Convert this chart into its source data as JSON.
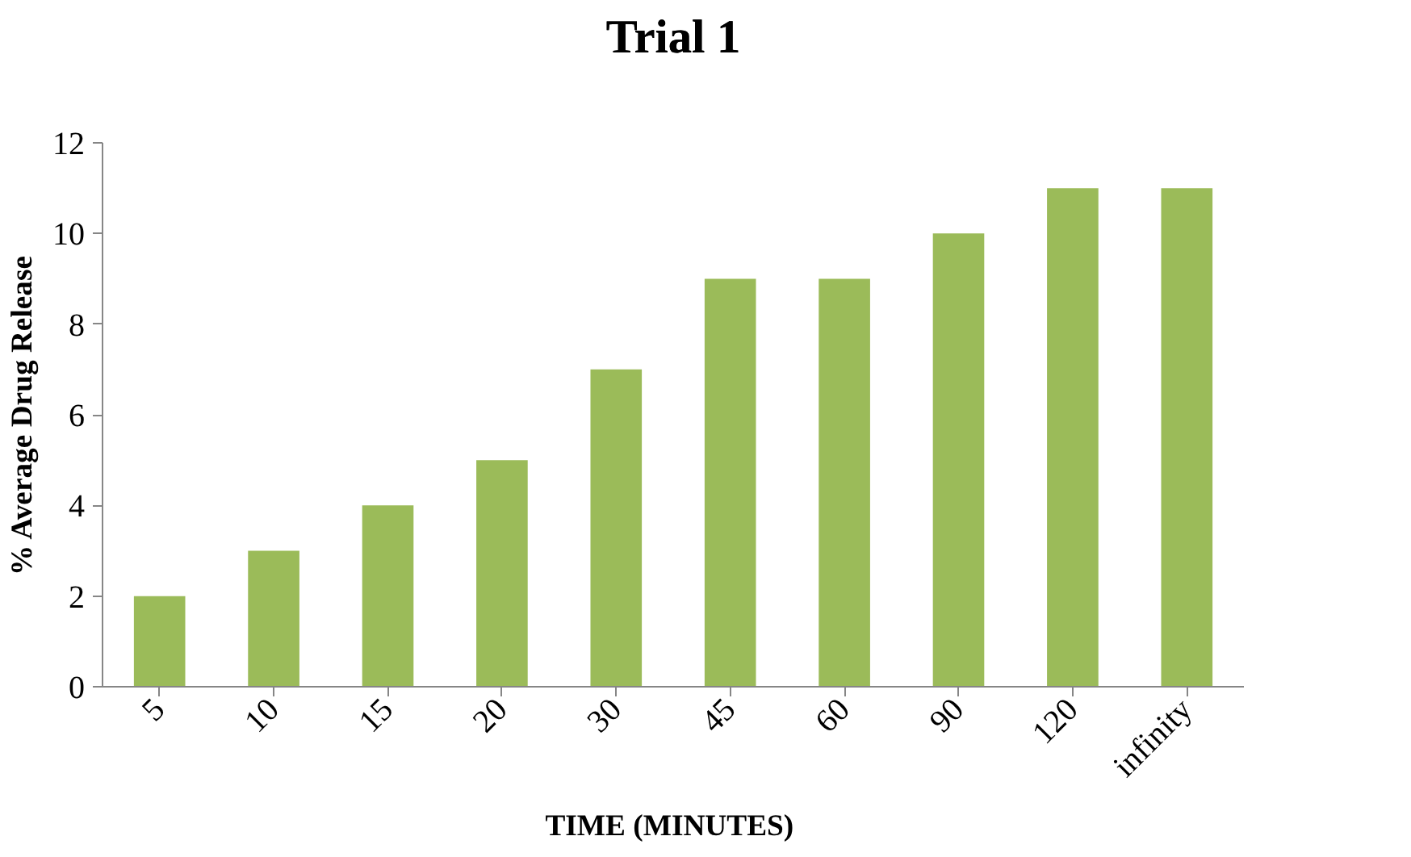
{
  "chart_data": {
    "type": "bar",
    "title": "Trial 1",
    "xlabel": "TIME  (MINUTES)",
    "ylabel": "% Average Drug Release",
    "categories": [
      "5",
      "10",
      "15",
      "20",
      "30",
      "45",
      "60",
      "90",
      "120",
      "infinity"
    ],
    "values": [
      2,
      3,
      4,
      5,
      7,
      9,
      9,
      10,
      11,
      11
    ],
    "color": "#9bbb59",
    "ylim": [
      0,
      12
    ],
    "yticks": [
      0,
      2,
      4,
      6,
      8,
      10,
      12
    ],
    "grid": false
  }
}
